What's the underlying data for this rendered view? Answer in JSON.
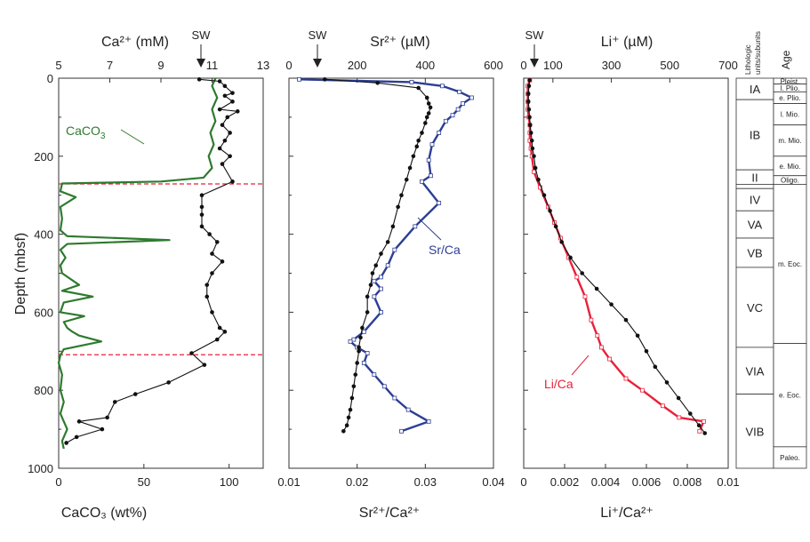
{
  "colors": {
    "black": "#111111",
    "green": "#2e7a2e",
    "blue": "#2c3e94",
    "red": "#e8213a",
    "dashed_red": "#e8213a"
  },
  "labels": {
    "y_axis": "Depth (mbsf)",
    "sw": "SW",
    "caco3_curve": "CaCO3",
    "srca_curve": "Sr/Ca",
    "lica_curve": "Li/Ca",
    "lith_header": "Lithologic units/subunits",
    "age_header": "Age"
  },
  "panel1": {
    "top_label": "Ca²⁺ (mM)",
    "bottom_label": "CaCO₃ (wt%)",
    "top_ticks": [
      "5",
      "7",
      "9",
      "11",
      "13"
    ],
    "bottom_ticks": [
      "0",
      "50",
      "100"
    ],
    "depth_ticks": [
      "0",
      "200",
      "400",
      "600",
      "800",
      "1000"
    ]
  },
  "panel2": {
    "top_label": "Sr²⁺ (µM)",
    "bottom_label": "Sr²⁺/Ca²⁺",
    "top_ticks": [
      "0",
      "200",
      "400",
      "600"
    ],
    "bottom_ticks": [
      "0.01",
      "0.02",
      "0.03",
      "0.04"
    ]
  },
  "panel3": {
    "top_label": "Li⁺ (µM)",
    "bottom_label": "Li⁺/Ca²⁺",
    "top_ticks": [
      "0",
      "100",
      "300",
      "500",
      "700"
    ],
    "bottom_ticks": [
      "0",
      "0.002",
      "0.004",
      "0.006",
      "0.008",
      "0.01"
    ]
  },
  "lithology": [
    {
      "unit": "IA",
      "top": 0,
      "bottom": 55
    },
    {
      "unit": "IB",
      "top": 55,
      "bottom": 235
    },
    {
      "unit": "II",
      "top": 235,
      "bottom": 272
    },
    {
      "unit": "",
      "top": 272,
      "bottom": 283
    },
    {
      "unit": "IV",
      "top": 283,
      "bottom": 340
    },
    {
      "unit": "VA",
      "top": 340,
      "bottom": 410
    },
    {
      "unit": "VB",
      "top": 410,
      "bottom": 485
    },
    {
      "unit": "VC",
      "top": 485,
      "bottom": 690
    },
    {
      "unit": "VIA",
      "top": 690,
      "bottom": 810
    },
    {
      "unit": "VIB",
      "top": 810,
      "bottom": 1000
    }
  ],
  "ages": [
    {
      "age": "Pleist.",
      "top": 0,
      "bottom": 15
    },
    {
      "age": "l. Plio.",
      "top": 15,
      "bottom": 35
    },
    {
      "age": "e. Plio.",
      "top": 35,
      "bottom": 65
    },
    {
      "age": "l. Mio.",
      "top": 65,
      "bottom": 120
    },
    {
      "age": "m. Mio.",
      "top": 120,
      "bottom": 200
    },
    {
      "age": "e. Mio.",
      "top": 200,
      "bottom": 250
    },
    {
      "age": "Oligo.",
      "top": 250,
      "bottom": 272
    },
    {
      "age": "m. Eoc.",
      "top": 272,
      "bottom": 680
    },
    {
      "age": "e. Eoc.",
      "top": 680,
      "bottom": 945
    },
    {
      "age": "Paleo.",
      "top": 945,
      "bottom": 1000
    }
  ],
  "chart_data": [
    {
      "type": "line",
      "panel": "Ca and CaCO3",
      "ylabel": "Depth (mbsf)",
      "ylim": [
        0,
        1000
      ],
      "y_inverted": true,
      "dashed_lines_depth": [
        271,
        709
      ],
      "series": [
        {
          "name": "Ca2+ (mM)",
          "xlim": [
            5,
            13
          ],
          "points": [
            [
              10.5,
              3
            ],
            [
              11.3,
              8
            ],
            [
              11.5,
              20
            ],
            [
              11.8,
              38
            ],
            [
              11.5,
              45
            ],
            [
              11.8,
              60
            ],
            [
              11.3,
              80
            ],
            [
              12.0,
              85
            ],
            [
              11.6,
              100
            ],
            [
              11.4,
              120
            ],
            [
              11.7,
              140
            ],
            [
              11.5,
              160
            ],
            [
              11.3,
              180
            ],
            [
              11.7,
              200
            ],
            [
              11.4,
              220
            ],
            [
              11.8,
              265
            ],
            [
              10.6,
              300
            ],
            [
              10.6,
              330
            ],
            [
              10.6,
              350
            ],
            [
              10.6,
              380
            ],
            [
              10.9,
              400
            ],
            [
              11.2,
              420
            ],
            [
              11.0,
              450
            ],
            [
              11.4,
              470
            ],
            [
              11.0,
              500
            ],
            [
              10.8,
              530
            ],
            [
              10.8,
              560
            ],
            [
              11.0,
              600
            ],
            [
              11.3,
              640
            ],
            [
              11.5,
              650
            ],
            [
              11.2,
              670
            ],
            [
              10.2,
              705
            ],
            [
              10.7,
              735
            ],
            [
              9.3,
              780
            ],
            [
              8.0,
              810
            ],
            [
              7.2,
              830
            ],
            [
              6.9,
              870
            ],
            [
              5.8,
              880
            ],
            [
              6.7,
              900
            ],
            [
              5.7,
              920
            ],
            [
              5.3,
              935
            ]
          ]
        },
        {
          "name": "CaCO3 (wt%)",
          "xlim": [
            0,
            120
          ],
          "points": [
            [
              92,
              0
            ],
            [
              90,
              20
            ],
            [
              93,
              50
            ],
            [
              90,
              80
            ],
            [
              92,
              110
            ],
            [
              89,
              140
            ],
            [
              91,
              170
            ],
            [
              88,
              200
            ],
            [
              90,
              230
            ],
            [
              85,
              255
            ],
            [
              60,
              265
            ],
            [
              2,
              270
            ],
            [
              1,
              290
            ],
            [
              10,
              305
            ],
            [
              1,
              330
            ],
            [
              2,
              360
            ],
            [
              1,
              390
            ],
            [
              5,
              405
            ],
            [
              65,
              415
            ],
            [
              5,
              425
            ],
            [
              1,
              440
            ],
            [
              4,
              460
            ],
            [
              1,
              480
            ],
            [
              2,
              500
            ],
            [
              12,
              530
            ],
            [
              2,
              545
            ],
            [
              20,
              560
            ],
            [
              3,
              575
            ],
            [
              1,
              600
            ],
            [
              15,
              610
            ],
            [
              3,
              625
            ],
            [
              5,
              640
            ],
            [
              8,
              650
            ],
            [
              12,
              660
            ],
            [
              25,
              675
            ],
            [
              3,
              695
            ],
            [
              1,
              710
            ],
            [
              0,
              730
            ],
            [
              2,
              760
            ],
            [
              1,
              800
            ],
            [
              3,
              830
            ],
            [
              1,
              860
            ],
            [
              5,
              900
            ],
            [
              2,
              930
            ],
            [
              3,
              950
            ]
          ]
        }
      ]
    },
    {
      "type": "line",
      "panel": "Sr",
      "ylim": [
        0,
        1000
      ],
      "y_inverted": true,
      "series": [
        {
          "name": "Sr2+ (uM)",
          "xlim": [
            0,
            600
          ],
          "points": [
            [
              105,
              3
            ],
            [
              260,
              12
            ],
            [
              380,
              25
            ],
            [
              405,
              50
            ],
            [
              410,
              65
            ],
            [
              415,
              75
            ],
            [
              410,
              90
            ],
            [
              405,
              100
            ],
            [
              400,
              115
            ],
            [
              390,
              140
            ],
            [
              380,
              160
            ],
            [
              375,
              175
            ],
            [
              365,
              200
            ],
            [
              355,
              230
            ],
            [
              345,
              260
            ],
            [
              330,
              300
            ],
            [
              320,
              330
            ],
            [
              305,
              380
            ],
            [
              290,
              420
            ],
            [
              270,
              450
            ],
            [
              255,
              480
            ],
            [
              245,
              500
            ],
            [
              240,
              530
            ],
            [
              230,
              560
            ],
            [
              230,
              600
            ],
            [
              215,
              640
            ],
            [
              210,
              665
            ],
            [
              205,
              690
            ],
            [
              205,
              700
            ],
            [
              200,
              730
            ],
            [
              195,
              760
            ],
            [
              190,
              790
            ],
            [
              185,
              820
            ],
            [
              180,
              850
            ],
            [
              175,
              870
            ],
            [
              170,
              890
            ],
            [
              160,
              905
            ]
          ]
        },
        {
          "name": "Sr/Ca",
          "xlim": [
            0.01,
            0.04
          ],
          "points": [
            [
              0.0115,
              3
            ],
            [
              0.028,
              10
            ],
            [
              0.0325,
              20
            ],
            [
              0.035,
              35
            ],
            [
              0.0368,
              50
            ],
            [
              0.0355,
              65
            ],
            [
              0.0348,
              80
            ],
            [
              0.034,
              95
            ],
            [
              0.033,
              110
            ],
            [
              0.032,
              140
            ],
            [
              0.031,
              170
            ],
            [
              0.0305,
              210
            ],
            [
              0.0308,
              250
            ],
            [
              0.0295,
              265
            ],
            [
              0.032,
              320
            ],
            [
              0.0285,
              380
            ],
            [
              0.0255,
              440
            ],
            [
              0.0245,
              480
            ],
            [
              0.0235,
              510
            ],
            [
              0.0225,
              520
            ],
            [
              0.0235,
              540
            ],
            [
              0.0225,
              560
            ],
            [
              0.0235,
              600
            ],
            [
              0.021,
              650
            ],
            [
              0.0195,
              670
            ],
            [
              0.019,
              675
            ],
            [
              0.02,
              690
            ],
            [
              0.0215,
              705
            ],
            [
              0.021,
              730
            ],
            [
              0.0225,
              760
            ],
            [
              0.024,
              790
            ],
            [
              0.0255,
              820
            ],
            [
              0.0275,
              850
            ],
            [
              0.0305,
              880
            ],
            [
              0.0265,
              905
            ]
          ]
        }
      ]
    },
    {
      "type": "line",
      "panel": "Li",
      "ylim": [
        0,
        1000
      ],
      "y_inverted": true,
      "series": [
        {
          "name": "Li+ (uM)",
          "xlim": [
            0,
            700
          ],
          "points": [
            [
              20,
              5
            ],
            [
              18,
              20
            ],
            [
              16,
              40
            ],
            [
              16,
              60
            ],
            [
              18,
              80
            ],
            [
              20,
              100
            ],
            [
              22,
              120
            ],
            [
              25,
              140
            ],
            [
              28,
              160
            ],
            [
              30,
              180
            ],
            [
              35,
              200
            ],
            [
              40,
              230
            ],
            [
              50,
              260
            ],
            [
              70,
              300
            ],
            [
              90,
              340
            ],
            [
              110,
              380
            ],
            [
              130,
              420
            ],
            [
              160,
              460
            ],
            [
              200,
              500
            ],
            [
              250,
              540
            ],
            [
              300,
              580
            ],
            [
              350,
              620
            ],
            [
              390,
              660
            ],
            [
              420,
              700
            ],
            [
              450,
              740
            ],
            [
              490,
              780
            ],
            [
              530,
              820
            ],
            [
              570,
              860
            ],
            [
              600,
              890
            ],
            [
              620,
              910
            ]
          ]
        },
        {
          "name": "Li/Ca",
          "xlim": [
            0,
            0.01
          ],
          "points": [
            [
              0.0003,
              5
            ],
            [
              0.0002,
              20
            ],
            [
              0.0002,
              40
            ],
            [
              0.0002,
              60
            ],
            [
              0.0002,
              80
            ],
            [
              0.00025,
              100
            ],
            [
              0.0003,
              120
            ],
            [
              0.0003,
              140
            ],
            [
              0.0003,
              160
            ],
            [
              0.00035,
              180
            ],
            [
              0.0004,
              200
            ],
            [
              0.0005,
              240
            ],
            [
              0.0008,
              280
            ],
            [
              0.0012,
              330
            ],
            [
              0.0015,
              370
            ],
            [
              0.0018,
              410
            ],
            [
              0.0022,
              460
            ],
            [
              0.0026,
              510
            ],
            [
              0.003,
              560
            ],
            [
              0.0033,
              620
            ],
            [
              0.0036,
              660
            ],
            [
              0.0038,
              690
            ],
            [
              0.0042,
              720
            ],
            [
              0.005,
              770
            ],
            [
              0.0058,
              800
            ],
            [
              0.0068,
              840
            ],
            [
              0.0076,
              870
            ],
            [
              0.0088,
              880
            ],
            [
              0.0086,
              905
            ]
          ]
        }
      ]
    }
  ]
}
